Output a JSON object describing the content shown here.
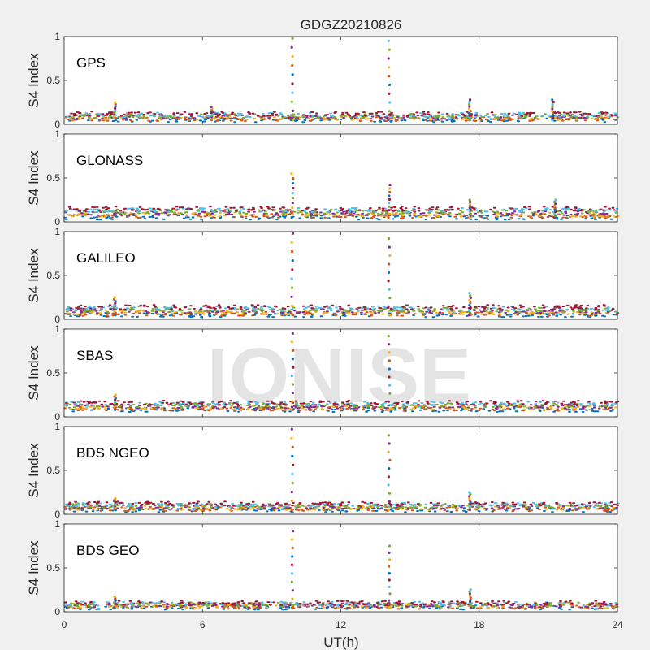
{
  "figure": {
    "title": "GDGZ20210826",
    "xlabel": "UT(h)",
    "watermark": "IONISE"
  },
  "chart_data": {
    "type": "scatter",
    "xlim": [
      0,
      24
    ],
    "ylim": [
      0,
      1
    ],
    "xticks": [
      0,
      6,
      12,
      18,
      24
    ],
    "yticks": [
      0,
      0.5,
      1
    ],
    "ylabel": "S4 Index",
    "series_colors": [
      "#0072BD",
      "#D95319",
      "#EDB120",
      "#7E2F8E",
      "#77AC30",
      "#4DBEEE",
      "#A2142F"
    ],
    "panels": [
      {
        "label": "GPS",
        "baseline_range": [
          0.05,
          0.12
        ],
        "spikes": [
          {
            "x": 2.2,
            "max": 0.25
          },
          {
            "x": 6.4,
            "max": 0.2
          },
          {
            "x": 9.9,
            "max": 0.98
          },
          {
            "x": 14.1,
            "max": 0.95
          },
          {
            "x": 17.6,
            "max": 0.28
          },
          {
            "x": 21.2,
            "max": 0.28
          }
        ]
      },
      {
        "label": "GLONASS",
        "baseline_range": [
          0.05,
          0.15
        ],
        "spikes": [
          {
            "x": 9.9,
            "max": 0.55
          },
          {
            "x": 14.1,
            "max": 0.42
          },
          {
            "x": 17.6,
            "max": 0.25
          },
          {
            "x": 21.3,
            "max": 0.25
          }
        ]
      },
      {
        "label": "GALILEO",
        "baseline_range": [
          0.05,
          0.14
        ],
        "spikes": [
          {
            "x": 2.2,
            "max": 0.25
          },
          {
            "x": 9.9,
            "max": 0.98
          },
          {
            "x": 14.1,
            "max": 0.92
          },
          {
            "x": 17.6,
            "max": 0.3
          }
        ]
      },
      {
        "label": "SBAS",
        "baseline_range": [
          0.08,
          0.16
        ],
        "spikes": [
          {
            "x": 2.2,
            "max": 0.25
          },
          {
            "x": 9.9,
            "max": 0.95
          },
          {
            "x": 14.1,
            "max": 0.92
          }
        ]
      },
      {
        "label": "BDS NGEO",
        "baseline_range": [
          0.05,
          0.12
        ],
        "spikes": [
          {
            "x": 2.2,
            "max": 0.18
          },
          {
            "x": 9.9,
            "max": 0.97
          },
          {
            "x": 14.1,
            "max": 0.9
          },
          {
            "x": 17.6,
            "max": 0.25
          }
        ]
      },
      {
        "label": "BDS GEO",
        "baseline_range": [
          0.05,
          0.1
        ],
        "spikes": [
          {
            "x": 2.2,
            "max": 0.17
          },
          {
            "x": 9.9,
            "max": 0.92
          },
          {
            "x": 14.1,
            "max": 0.75
          },
          {
            "x": 17.6,
            "max": 0.25
          }
        ]
      }
    ]
  }
}
